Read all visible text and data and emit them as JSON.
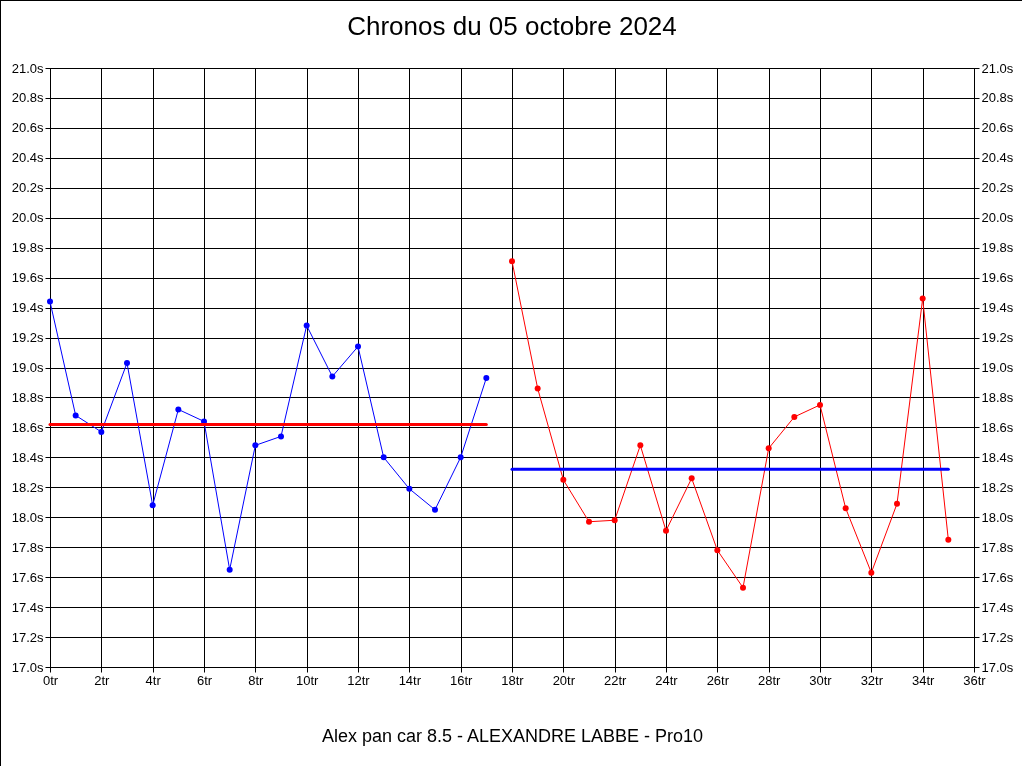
{
  "chart_data": {
    "type": "line",
    "title": "Chronos du 05 octobre 2024",
    "xlabel": "Alex pan car 8.5 - ALEXANDRE LABBE - Pro10",
    "xlim": [
      0,
      36
    ],
    "xticks": [
      {
        "value": 0,
        "label": "0tr"
      },
      {
        "value": 2,
        "label": "2tr"
      },
      {
        "value": 4,
        "label": "4tr"
      },
      {
        "value": 6,
        "label": "6tr"
      },
      {
        "value": 8,
        "label": "8tr"
      },
      {
        "value": 10,
        "label": "10tr"
      },
      {
        "value": 12,
        "label": "12tr"
      },
      {
        "value": 14,
        "label": "14tr"
      },
      {
        "value": 16,
        "label": "16tr"
      },
      {
        "value": 18,
        "label": "18tr"
      },
      {
        "value": 20,
        "label": "20tr"
      },
      {
        "value": 22,
        "label": "22tr"
      },
      {
        "value": 24,
        "label": "24tr"
      },
      {
        "value": 26,
        "label": "26tr"
      },
      {
        "value": 28,
        "label": "28tr"
      },
      {
        "value": 30,
        "label": "30tr"
      },
      {
        "value": 32,
        "label": "32tr"
      },
      {
        "value": 34,
        "label": "34tr"
      },
      {
        "value": 36,
        "label": "36tr"
      }
    ],
    "ylim": [
      17.0,
      21.0
    ],
    "yticks": [
      {
        "value": 17.0,
        "label": "17.0s"
      },
      {
        "value": 17.2,
        "label": "17.2s"
      },
      {
        "value": 17.4,
        "label": "17.4s"
      },
      {
        "value": 17.6,
        "label": "17.6s"
      },
      {
        "value": 17.8,
        "label": "17.8s"
      },
      {
        "value": 18.0,
        "label": "18.0s"
      },
      {
        "value": 18.2,
        "label": "18.2s"
      },
      {
        "value": 18.4,
        "label": "18.4s"
      },
      {
        "value": 18.6,
        "label": "18.6s"
      },
      {
        "value": 18.8,
        "label": "18.8s"
      },
      {
        "value": 19.0,
        "label": "19.0s"
      },
      {
        "value": 19.2,
        "label": "19.2s"
      },
      {
        "value": 19.4,
        "label": "19.4s"
      },
      {
        "value": 19.6,
        "label": "19.6s"
      },
      {
        "value": 19.8,
        "label": "19.8s"
      },
      {
        "value": 20.0,
        "label": "20.0s"
      },
      {
        "value": 20.2,
        "label": "20.2s"
      },
      {
        "value": 20.4,
        "label": "20.4s"
      },
      {
        "value": 20.6,
        "label": "20.6s"
      },
      {
        "value": 20.8,
        "label": "20.8s"
      },
      {
        "value": 21.0,
        "label": "21.0s"
      }
    ],
    "y2lim": [
      17.0,
      21.0
    ],
    "y2ticks": [
      {
        "value": 17.0,
        "label": "17.0s"
      },
      {
        "value": 17.2,
        "label": "17.2s"
      },
      {
        "value": 17.4,
        "label": "17.4s"
      },
      {
        "value": 17.6,
        "label": "17.6s"
      },
      {
        "value": 17.8,
        "label": "17.8s"
      },
      {
        "value": 18.0,
        "label": "18.0s"
      },
      {
        "value": 18.2,
        "label": "18.2s"
      },
      {
        "value": 18.4,
        "label": "18.4s"
      },
      {
        "value": 18.6,
        "label": "18.6s"
      },
      {
        "value": 18.8,
        "label": "18.8s"
      },
      {
        "value": 19.0,
        "label": "19.0s"
      },
      {
        "value": 19.2,
        "label": "19.2s"
      },
      {
        "value": 19.4,
        "label": "19.4s"
      },
      {
        "value": 19.6,
        "label": "19.6s"
      },
      {
        "value": 19.8,
        "label": "19.8s"
      },
      {
        "value": 20.0,
        "label": "20.0s"
      },
      {
        "value": 20.2,
        "label": "20.2s"
      },
      {
        "value": 20.4,
        "label": "20.4s"
      },
      {
        "value": 20.6,
        "label": "20.6s"
      },
      {
        "value": 20.8,
        "label": "20.8s"
      },
      {
        "value": 21.0,
        "label": "21.0s"
      }
    ],
    "grid": true,
    "marker": "circle",
    "series": [
      {
        "color": "#0000ff",
        "x": [
          0,
          1,
          2,
          3,
          4,
          5,
          6,
          7,
          8,
          9,
          10,
          11,
          12,
          13,
          14,
          15,
          16,
          17
        ],
        "values": [
          19.44,
          18.68,
          18.57,
          19.03,
          18.08,
          18.72,
          18.64,
          17.65,
          18.48,
          18.54,
          19.28,
          18.94,
          19.14,
          18.4,
          18.19,
          18.05,
          18.4,
          18.93
        ]
      },
      {
        "color": "#ff0000",
        "x": [
          18,
          19,
          20,
          21,
          22,
          23,
          24,
          25,
          26,
          27,
          28,
          29,
          30,
          31,
          32,
          33,
          34,
          35
        ],
        "values": [
          19.71,
          18.86,
          18.25,
          17.97,
          17.98,
          18.48,
          17.91,
          18.26,
          17.78,
          17.53,
          18.46,
          18.67,
          18.75,
          18.06,
          17.63,
          18.09,
          19.46,
          17.85
        ]
      },
      {
        "color": "#ff0000",
        "marker": "none",
        "x": [
          0,
          17
        ],
        "values": [
          18.62,
          18.62
        ]
      },
      {
        "color": "#0000ff",
        "marker": "none",
        "x": [
          18,
          35
        ],
        "values": [
          18.32,
          18.32
        ]
      }
    ]
  }
}
